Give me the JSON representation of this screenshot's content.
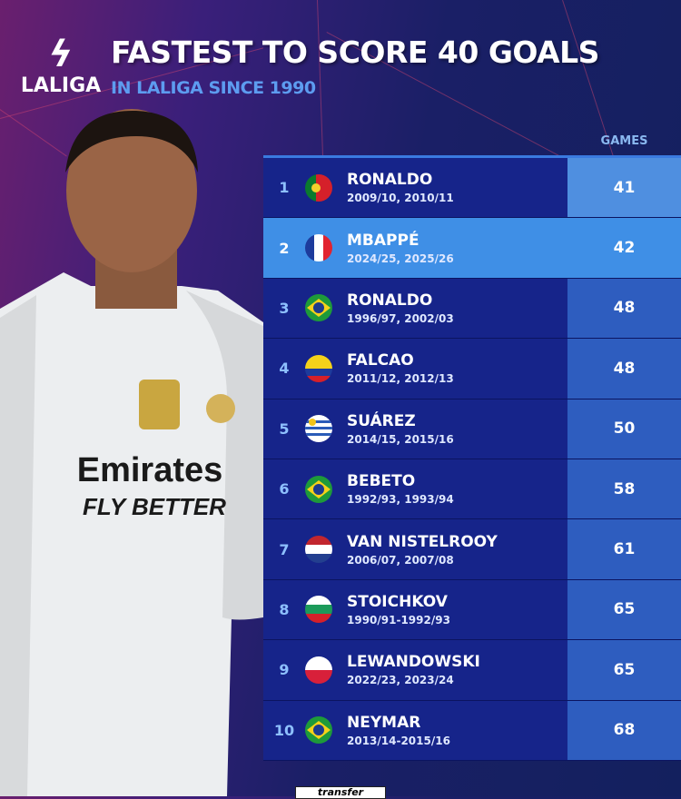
{
  "header": {
    "logo_mark": "L",
    "logo_text": "LALIGA",
    "title": "FASTEST TO SCORE 40 GOALS",
    "subtitle": "IN LALIGA SINCE 1990"
  },
  "table": {
    "games_header": "GAMES",
    "highlight_rank": 2,
    "rows": [
      {
        "rank": "1",
        "name": "RONALDO",
        "seasons": "2009/10, 2010/11",
        "games": "41",
        "flag": "portugal"
      },
      {
        "rank": "2",
        "name": "MBAPPÉ",
        "seasons": "2024/25, 2025/26",
        "games": "42",
        "flag": "france"
      },
      {
        "rank": "3",
        "name": "RONALDO",
        "seasons": "1996/97, 2002/03",
        "games": "48",
        "flag": "brazil"
      },
      {
        "rank": "4",
        "name": "FALCAO",
        "seasons": "2011/12, 2012/13",
        "games": "48",
        "flag": "colombia"
      },
      {
        "rank": "5",
        "name": "SUÁREZ",
        "seasons": "2014/15, 2015/16",
        "games": "50",
        "flag": "uruguay"
      },
      {
        "rank": "6",
        "name": "BEBETO",
        "seasons": "1992/93, 1993/94",
        "games": "58",
        "flag": "brazil"
      },
      {
        "rank": "7",
        "name": "VAN NISTELROOY",
        "seasons": "2006/07, 2007/08",
        "games": "61",
        "flag": "netherlands"
      },
      {
        "rank": "8",
        "name": "STOICHKOV",
        "seasons": "1990/91-1992/93",
        "games": "65",
        "flag": "bulgaria"
      },
      {
        "rank": "9",
        "name": "LEWANDOWSKI",
        "seasons": "2022/23, 2023/24",
        "games": "65",
        "flag": "poland"
      },
      {
        "rank": "10",
        "name": "NEYMAR",
        "seasons": "2013/14-2015/16",
        "games": "68",
        "flag": "brazil"
      }
    ]
  },
  "player_shirt": {
    "sponsor": "Emirates",
    "slogan": "FLY BETTER"
  },
  "watermark": "transfer"
}
